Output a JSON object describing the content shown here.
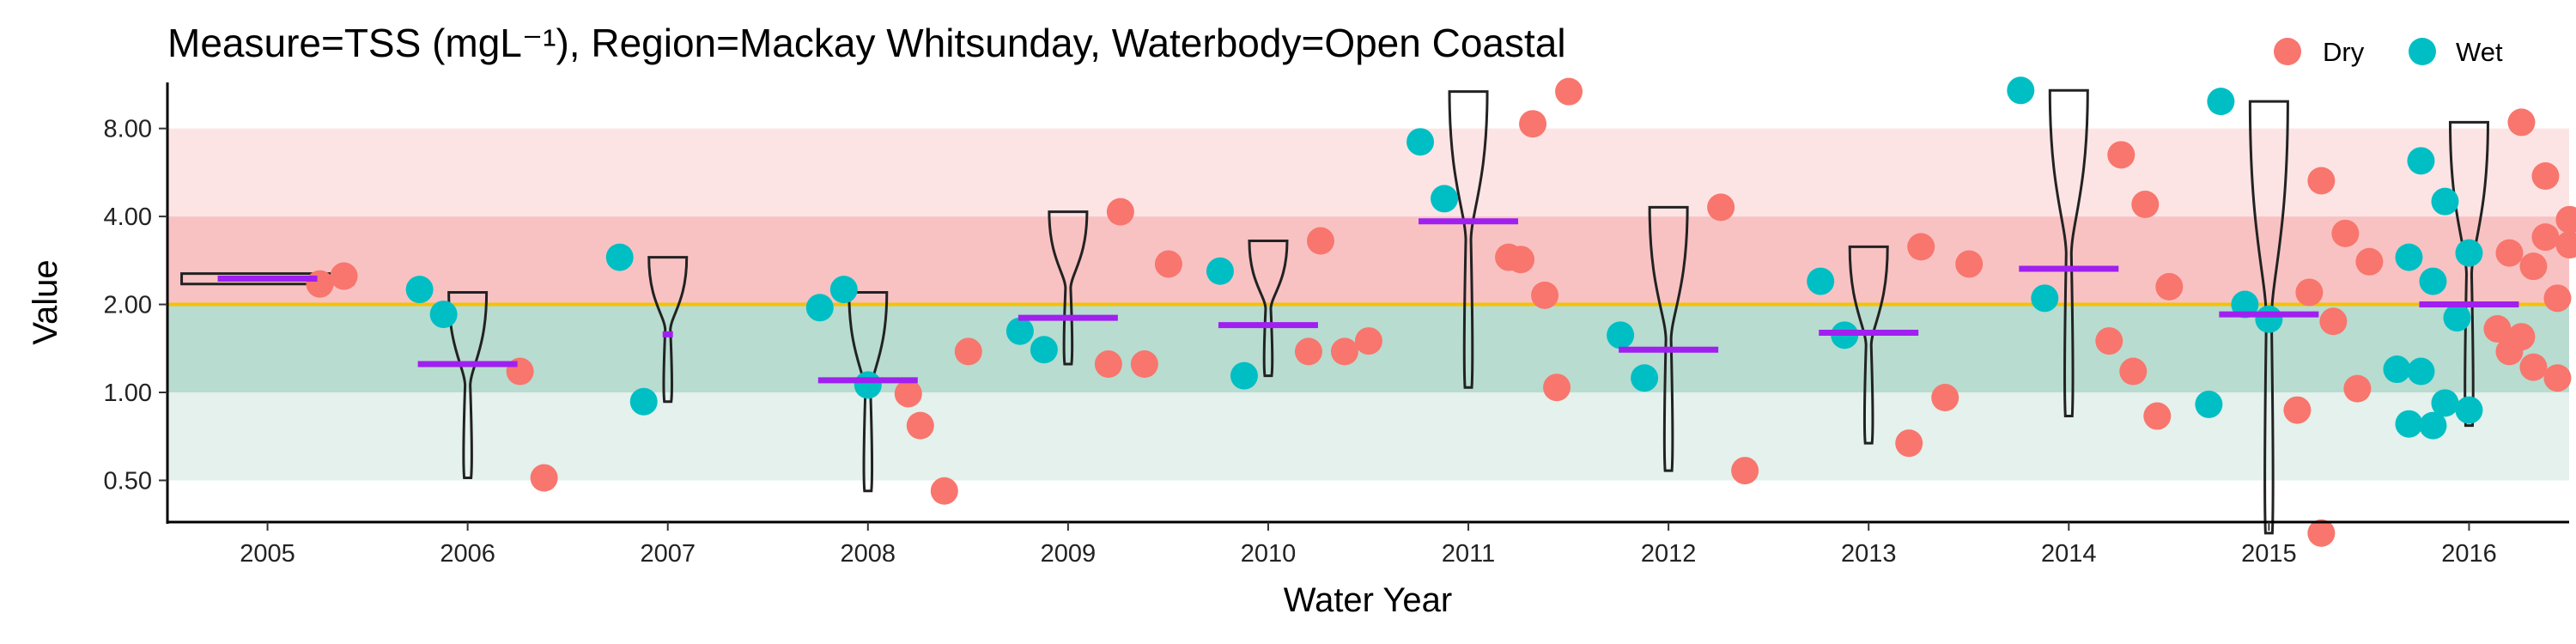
{
  "chart_data": {
    "type": "scatter",
    "title": "Measure=TSS (mgL⁻¹), Region=Mackay Whitsunday, Waterbody=Open Coastal",
    "xlabel": "Water Year",
    "ylabel": "Value",
    "y_scale": "log",
    "ylim": [
      0.36,
      11.5
    ],
    "y_ticks": [
      0.5,
      1,
      2,
      4,
      8
    ],
    "y_tick_labels": [
      "0.50",
      "1.00",
      "2.00",
      "4.00",
      "8.00"
    ],
    "categories": [
      "2005",
      "2006",
      "2007",
      "2008",
      "2009",
      "2010",
      "2011",
      "2012",
      "2013",
      "2014",
      "2015",
      "2016"
    ],
    "guideline": 2.0,
    "bands": [
      {
        "from": 0.5,
        "to": 1.0,
        "color": "#e4f1ec"
      },
      {
        "from": 1.0,
        "to": 2.0,
        "color": "#b8dcd0"
      },
      {
        "from": 2.0,
        "to": 4.0,
        "color": "#f8c2c3"
      },
      {
        "from": 4.0,
        "to": 8.0,
        "color": "#fce4e5"
      }
    ],
    "colors": {
      "Dry": "#f8766d",
      "Wet": "#00bfc4",
      "median": "#a020f0",
      "guideline": "#f5c200"
    },
    "legend": {
      "position": "top-right",
      "entries": [
        "Dry",
        "Wet"
      ]
    },
    "series": [
      {
        "name": "Dry",
        "points": [
          {
            "x": "2005",
            "y": 2.35
          },
          {
            "x": "2005",
            "y": 2.5
          },
          {
            "x": "2006",
            "y": 1.18
          },
          {
            "x": "2006",
            "y": 0.51
          },
          {
            "x": "2008",
            "y": 0.77
          },
          {
            "x": "2008",
            "y": 0.46
          },
          {
            "x": "2008",
            "y": 1.38
          },
          {
            "x": "2008",
            "y": 0.99
          },
          {
            "x": "2009",
            "y": 4.15
          },
          {
            "x": "2009",
            "y": 1.25
          },
          {
            "x": "2009",
            "y": 2.75
          },
          {
            "x": "2009",
            "y": 1.25
          },
          {
            "x": "2010",
            "y": 3.3
          },
          {
            "x": "2010",
            "y": 1.38
          },
          {
            "x": "2010",
            "y": 1.5
          },
          {
            "x": "2010",
            "y": 1.38
          },
          {
            "x": "2011",
            "y": 2.85
          },
          {
            "x": "2011",
            "y": 2.15
          },
          {
            "x": "2011",
            "y": 10.7
          },
          {
            "x": "2011",
            "y": 2.9
          },
          {
            "x": "2011",
            "y": 8.3
          },
          {
            "x": "2011",
            "y": 1.04
          },
          {
            "x": "2012",
            "y": 4.3
          },
          {
            "x": "2012",
            "y": 0.54
          },
          {
            "x": "2013",
            "y": 3.15
          },
          {
            "x": "2013",
            "y": 0.96
          },
          {
            "x": "2013",
            "y": 2.75
          },
          {
            "x": "2013",
            "y": 0.67
          },
          {
            "x": "2014",
            "y": 6.5
          },
          {
            "x": "2014",
            "y": 4.4
          },
          {
            "x": "2014",
            "y": 2.3
          },
          {
            "x": "2014",
            "y": 1.5
          },
          {
            "x": "2014",
            "y": 1.18
          },
          {
            "x": "2014",
            "y": 0.83
          },
          {
            "x": "2015",
            "y": 5.3
          },
          {
            "x": "2015",
            "y": 3.5
          },
          {
            "x": "2015",
            "y": 2.8
          },
          {
            "x": "2015",
            "y": 2.2
          },
          {
            "x": "2015",
            "y": 1.75
          },
          {
            "x": "2015",
            "y": 1.03
          },
          {
            "x": "2015",
            "y": 0.87
          },
          {
            "x": "2015",
            "y": 0.33
          },
          {
            "x": "2016",
            "y": 8.4
          },
          {
            "x": "2016",
            "y": 5.5
          },
          {
            "x": "2016",
            "y": 3.9
          },
          {
            "x": "2016",
            "y": 3.0
          },
          {
            "x": "2016",
            "y": 2.7
          },
          {
            "x": "2016",
            "y": 2.1
          },
          {
            "x": "2016",
            "y": 1.65
          },
          {
            "x": "2016",
            "y": 1.55
          },
          {
            "x": "2016",
            "y": 3.4
          },
          {
            "x": "2016",
            "y": 3.2
          },
          {
            "x": "2016",
            "y": 1.38
          },
          {
            "x": "2016",
            "y": 1.22
          },
          {
            "x": "2016",
            "y": 1.12
          }
        ]
      },
      {
        "name": "Wet",
        "points": [
          {
            "x": "2006",
            "y": 2.25
          },
          {
            "x": "2006",
            "y": 1.85
          },
          {
            "x": "2007",
            "y": 2.9
          },
          {
            "x": "2007",
            "y": 0.93
          },
          {
            "x": "2008",
            "y": 1.95
          },
          {
            "x": "2008",
            "y": 2.25
          },
          {
            "x": "2008",
            "y": 1.06
          },
          {
            "x": "2009",
            "y": 1.62
          },
          {
            "x": "2009",
            "y": 1.4
          },
          {
            "x": "2010",
            "y": 2.6
          },
          {
            "x": "2010",
            "y": 1.14
          },
          {
            "x": "2011",
            "y": 7.2
          },
          {
            "x": "2011",
            "y": 4.6
          },
          {
            "x": "2012",
            "y": 1.57
          },
          {
            "x": "2012",
            "y": 1.12
          },
          {
            "x": "2013",
            "y": 2.4
          },
          {
            "x": "2013",
            "y": 1.57
          },
          {
            "x": "2014",
            "y": 10.8
          },
          {
            "x": "2014",
            "y": 2.1
          },
          {
            "x": "2015",
            "y": 9.9
          },
          {
            "x": "2015",
            "y": 2.0
          },
          {
            "x": "2015",
            "y": 1.78
          },
          {
            "x": "2015",
            "y": 0.91
          },
          {
            "x": "2016",
            "y": 6.2
          },
          {
            "x": "2016",
            "y": 4.5
          },
          {
            "x": "2016",
            "y": 3.0
          },
          {
            "x": "2016",
            "y": 2.9
          },
          {
            "x": "2016",
            "y": 2.4
          },
          {
            "x": "2016",
            "y": 1.8
          },
          {
            "x": "2016",
            "y": 1.2
          },
          {
            "x": "2016",
            "y": 1.18
          },
          {
            "x": "2016",
            "y": 0.92
          },
          {
            "x": "2016",
            "y": 0.87
          },
          {
            "x": "2016",
            "y": 0.78
          },
          {
            "x": "2016",
            "y": 0.77
          }
        ]
      }
    ],
    "medians": [
      {
        "x": "2005",
        "y": 2.45
      },
      {
        "x": "2006",
        "y": 1.25
      },
      {
        "x": "2007",
        "y": 1.58
      },
      {
        "x": "2008",
        "y": 1.1
      },
      {
        "x": "2009",
        "y": 1.8
      },
      {
        "x": "2010",
        "y": 1.7
      },
      {
        "x": "2011",
        "y": 3.85
      },
      {
        "x": "2012",
        "y": 1.4
      },
      {
        "x": "2013",
        "y": 1.6
      },
      {
        "x": "2014",
        "y": 2.65
      },
      {
        "x": "2015",
        "y": 1.85
      },
      {
        "x": "2016",
        "y": 2.0
      }
    ],
    "violins": [
      {
        "x": "2005",
        "low": 2.35,
        "high": 2.55
      },
      {
        "x": "2006",
        "low": 0.51,
        "high": 2.2
      },
      {
        "x": "2007",
        "low": 0.93,
        "high": 2.9
      },
      {
        "x": "2008",
        "low": 0.46,
        "high": 2.2
      },
      {
        "x": "2009",
        "low": 1.25,
        "high": 4.15
      },
      {
        "x": "2010",
        "low": 1.14,
        "high": 3.3
      },
      {
        "x": "2011",
        "low": 1.04,
        "high": 10.7
      },
      {
        "x": "2012",
        "low": 0.54,
        "high": 4.3
      },
      {
        "x": "2013",
        "low": 0.67,
        "high": 3.15
      },
      {
        "x": "2014",
        "low": 0.83,
        "high": 10.8
      },
      {
        "x": "2015",
        "low": 0.33,
        "high": 9.9
      },
      {
        "x": "2016",
        "low": 0.77,
        "high": 8.4
      }
    ]
  }
}
